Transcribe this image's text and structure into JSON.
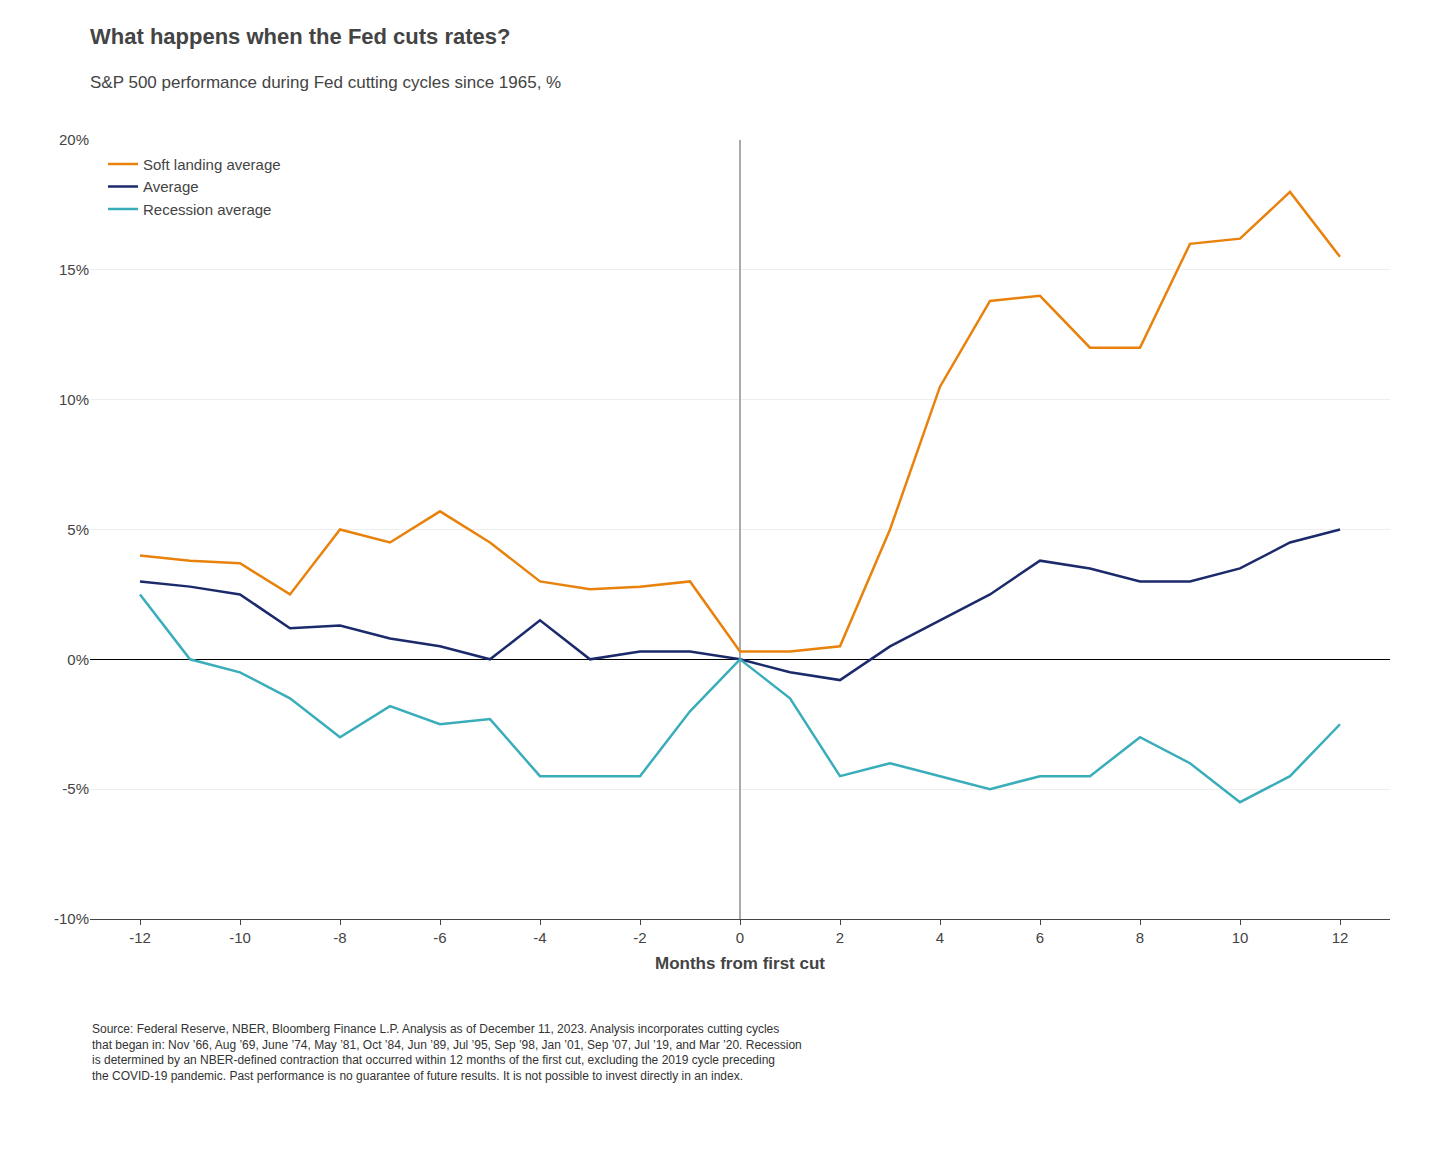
{
  "chart_data": {
    "type": "line",
    "title": "What happens when the Fed cuts rates?",
    "subtitle": "S&P 500 performance during Fed cutting cycles since 1965, %",
    "x_label": "Months from first cut",
    "x": [
      -12,
      -11,
      -10,
      -9,
      -8,
      -7,
      -6,
      -5,
      -4,
      -3,
      -2,
      -1,
      0,
      1,
      2,
      3,
      4,
      5,
      6,
      7,
      8,
      9,
      10,
      11,
      12
    ],
    "series": [
      {
        "name": "Soft landing average",
        "color": "#E8820C",
        "values": [
          4.0,
          3.8,
          3.7,
          2.5,
          5.0,
          4.5,
          5.7,
          4.5,
          3.0,
          2.7,
          2.8,
          3.0,
          0.3,
          0.3,
          0.5,
          5.0,
          10.5,
          13.8,
          14.0,
          12.0,
          12.0,
          16.0,
          16.2,
          18.0,
          15.5
        ]
      },
      {
        "name": "Average",
        "color": "#1B2A6B",
        "values": [
          3.0,
          2.8,
          2.5,
          1.2,
          1.3,
          0.8,
          0.5,
          0.0,
          1.5,
          0.0,
          0.3,
          0.3,
          0.0,
          -0.5,
          -0.8,
          0.5,
          1.5,
          2.5,
          3.8,
          3.5,
          3.0,
          3.0,
          3.5,
          4.5,
          5.0
        ]
      },
      {
        "name": "Recession average",
        "color": "#3AADBA",
        "values": [
          2.5,
          0.0,
          -0.5,
          -1.5,
          -3.0,
          -1.8,
          -2.5,
          -2.3,
          -4.5,
          -4.5,
          -4.5,
          -2.0,
          0.0,
          -1.5,
          -4.5,
          -4.0,
          -4.5,
          -5.0,
          -4.5,
          -4.5,
          -3.0,
          -4.0,
          -5.5,
          -4.5,
          -2.5
        ]
      }
    ],
    "xlim": [
      -13,
      13
    ],
    "xticks": [
      -12,
      -10,
      -8,
      -6,
      -4,
      -2,
      0,
      2,
      4,
      6,
      8,
      10,
      12
    ],
    "ylim": [
      -10,
      20
    ],
    "yticks": [
      {
        "value": -10,
        "label": "-10%"
      },
      {
        "value": -5,
        "label": "-5%"
      },
      {
        "value": 0,
        "label": "0%"
      },
      {
        "value": 5,
        "label": "5%"
      },
      {
        "value": 10,
        "label": "10%"
      },
      {
        "value": 15,
        "label": "15%"
      },
      {
        "value": 20,
        "label": "20%"
      }
    ],
    "grid": true,
    "legend": "upper left",
    "annotations": [
      "Source: Federal Reserve, NBER, Bloomberg Finance L.P. Analysis as of December 11, 2023. Analysis incorporates cutting cycles\nthat began in: Nov ’66, Aug ’69, June ’74, May ’81, Oct ’84, Jun ’89, Jul ’95, Sep ’98, Jan ’01, Sep ’07, Jul ’19, and Mar ’20. Recession\nis determined by an NBER-defined contraction that occurred within 12 months of the first cut, excluding the 2019 cycle preceding\nthe COVID-19 pandemic. Past performance is no guarantee of future results. It is not possible to invest directly in an index."
    ]
  }
}
